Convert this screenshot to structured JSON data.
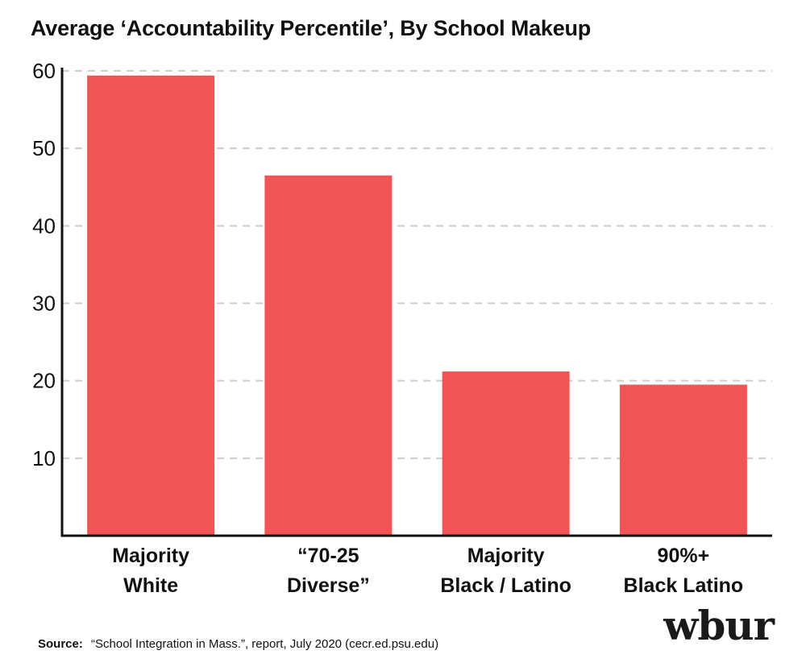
{
  "chart_data": {
    "type": "bar",
    "title": "Average ‘Accountability Percentile’, By School Makeup",
    "categories": [
      [
        "Majority",
        "White"
      ],
      [
        "“70-25",
        "Diverse”"
      ],
      [
        "Majority",
        "Black / Latino"
      ],
      [
        "90%+",
        "Black Latino"
      ]
    ],
    "values": [
      59.4,
      46.5,
      21.2,
      19.5
    ],
    "ylim": [
      0,
      60
    ],
    "yticks": [
      10,
      20,
      30,
      40,
      50,
      60
    ],
    "ytick_labels": [
      "10",
      "20",
      "30",
      "40",
      "50",
      "60"
    ],
    "xlabel": "",
    "ylabel": "",
    "grid": true,
    "bar_color": "#f05454",
    "grid_color": "#cccccc",
    "axis_color": "#111111"
  },
  "footer": {
    "source_label": "Source:",
    "source_text": "“School Integration in Mass.”, report, July 2020 (cecr.ed.psu.edu)",
    "logo_text": "wbur"
  }
}
